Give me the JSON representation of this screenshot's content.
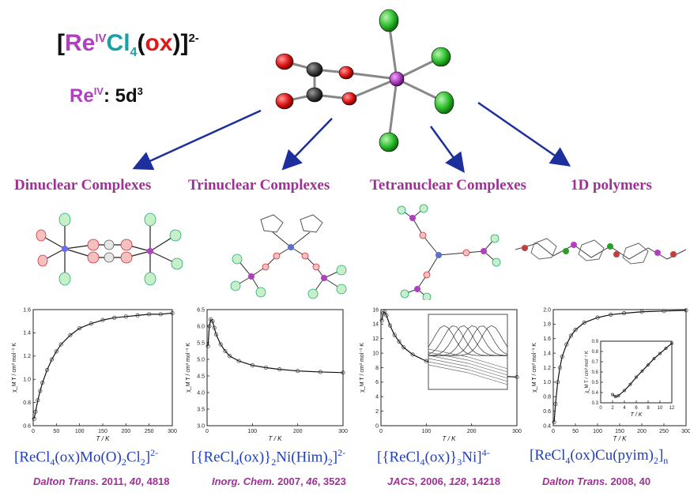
{
  "header": {
    "formula_bracket_open": "[",
    "formula_re": "Re",
    "formula_re_ox": "IV",
    "formula_cl": "Cl",
    "formula_cl_sub": "4",
    "formula_paren_open": "(",
    "formula_ox": "ox",
    "formula_paren_close": ")]",
    "formula_charge": "2-",
    "config_re": "Re",
    "config_re_ox": "IV",
    "config_colon": ": ",
    "config_value": "5d",
    "config_exp": "3"
  },
  "categories": [
    {
      "label": "Dinuclear Complexes"
    },
    {
      "label": "Trinuclear Complexes"
    },
    {
      "label": "Tetranuclear Complexes"
    },
    {
      "label": "1D polymers"
    }
  ],
  "compounds": [
    {
      "prefix": "[ReCl",
      "s1": "4",
      "mid": "(ox)Mo(O)",
      "s2": "2",
      "mid2": "Cl",
      "s3": "2",
      "end": "]",
      "charge": "2-"
    },
    {
      "prefix": "[{ReCl",
      "s1": "4",
      "mid": "(ox)}",
      "s2": "2",
      "mid2": "Ni(Him)",
      "s3": "2",
      "end": "]",
      "charge": "2-"
    },
    {
      "prefix": "[{ReCl",
      "s1": "4",
      "mid": "(ox)}",
      "s2": "3",
      "mid2": "Ni]",
      "s3": "",
      "end": "",
      "charge": "4-"
    },
    {
      "prefix": "[ReCl",
      "s1": "4",
      "mid": "(ox)Cu(pyim)",
      "s2": "2",
      "mid2": "]",
      "s3": "n",
      "end": "",
      "charge": ""
    }
  ],
  "references": [
    {
      "journal": "Dalton Trans.",
      "year": " 2011, ",
      "volume": "40",
      "pages": ", 4818"
    },
    {
      "journal": "Inorg. Chem.",
      "year": " 2007, ",
      "volume": "46",
      "pages": ", 3523"
    },
    {
      "journal": "JACS",
      "year": ", 2006, ",
      "volume": "128",
      "pages": ", 14218"
    },
    {
      "journal": "Dalton Trans.",
      "year": " 2008, ",
      "volume": "",
      "pages": "40"
    }
  ],
  "colors": {
    "rhenium": "#b040c0",
    "chlorine": "#30c030",
    "oxygen": "#e01818",
    "carbon": "#404040",
    "arrow": "#1c2f9c",
    "category": "#a03098",
    "compound": "#2040c0"
  },
  "chart_data": [
    {
      "type": "scatter",
      "ylabel": "χ_M T / cm³ mol⁻¹ K",
      "xlabel": "T / K",
      "xlim": [
        0,
        300
      ],
      "ylim": [
        0.6,
        1.6
      ],
      "xticks": [
        "0",
        "50",
        "100",
        "150",
        "200",
        "250",
        "300"
      ],
      "yticks": [
        "0.6",
        "0.8",
        "1.0",
        "1.2",
        "1.4",
        "1.6"
      ],
      "x": [
        2,
        5,
        10,
        15,
        20,
        30,
        40,
        50,
        60,
        80,
        100,
        125,
        150,
        175,
        200,
        225,
        250,
        275,
        300
      ],
      "y": [
        0.66,
        0.72,
        0.82,
        0.9,
        0.97,
        1.08,
        1.17,
        1.24,
        1.3,
        1.38,
        1.44,
        1.48,
        1.51,
        1.53,
        1.54,
        1.55,
        1.56,
        1.56,
        1.57
      ]
    },
    {
      "type": "scatter",
      "ylabel": "χ_M T / cm³ mol⁻¹ K",
      "xlabel": "T / K",
      "xlim": [
        0,
        300
      ],
      "ylim": [
        3.0,
        6.5
      ],
      "xticks": [
        "0",
        "100",
        "200",
        "300"
      ],
      "yticks": [
        "3.0",
        "3.5",
        "4.0",
        "4.5",
        "5.0",
        "5.5",
        "6.0",
        "6.5"
      ],
      "x": [
        2,
        5,
        8,
        12,
        16,
        20,
        30,
        40,
        50,
        70,
        100,
        130,
        160,
        200,
        250,
        300
      ],
      "y": [
        5.4,
        6.0,
        6.2,
        6.15,
        5.95,
        5.75,
        5.45,
        5.25,
        5.1,
        4.95,
        4.82,
        4.75,
        4.7,
        4.65,
        4.62,
        4.6
      ]
    },
    {
      "type": "scatter",
      "ylabel": "χ_M T / cm³ mol⁻¹ K",
      "xlabel": "T / K",
      "xlim": [
        0,
        300
      ],
      "ylim": [
        0,
        16
      ],
      "xticks": [
        "0",
        "100",
        "200",
        "300"
      ],
      "yticks": [
        "0",
        "2",
        "4",
        "6",
        "8",
        "10",
        "12",
        "14",
        "16"
      ],
      "x": [
        2,
        5,
        8,
        12,
        20,
        30,
        40,
        50,
        70,
        100,
        130,
        160,
        200,
        250,
        300
      ],
      "y": [
        14.5,
        15.5,
        15.7,
        15.2,
        13.8,
        12.5,
        11.6,
        10.8,
        9.8,
        8.9,
        8.3,
        7.8,
        7.3,
        6.9,
        6.7
      ]
    },
    {
      "type": "scatter",
      "ylabel": "χ_M T / cm³ mol⁻¹ K",
      "xlabel": "T / K",
      "xlim": [
        0,
        300
      ],
      "ylim": [
        0.4,
        2.0
      ],
      "xticks": [
        "0",
        "50",
        "100",
        "150",
        "200",
        "250",
        "300"
      ],
      "yticks": [
        "0.4",
        "0.6",
        "0.8",
        "1.0",
        "1.2",
        "1.4",
        "1.6",
        "1.8",
        "2.0"
      ],
      "x": [
        2,
        5,
        10,
        15,
        20,
        30,
        40,
        50,
        70,
        100,
        130,
        160,
        200,
        250,
        300
      ],
      "y": [
        0.45,
        0.7,
        1.0,
        1.2,
        1.35,
        1.52,
        1.64,
        1.72,
        1.82,
        1.89,
        1.93,
        1.95,
        1.97,
        1.98,
        1.99
      ],
      "inset": {
        "ylabel": "χ_M T / cm³ mol⁻¹ K",
        "xlabel": "T / K",
        "xlim": [
          0,
          12
        ],
        "ylim": [
          0.3,
          0.9
        ],
        "xticks": [
          "0",
          "2",
          "4",
          "6",
          "8",
          "10",
          "12"
        ],
        "yticks": [
          "0.3",
          "0.4",
          "0.5",
          "0.6",
          "0.7",
          "0.8",
          "0.9"
        ],
        "x": [
          2,
          2.5,
          3,
          4,
          5,
          6,
          7,
          8,
          9,
          10,
          11,
          12
        ],
        "y": [
          0.38,
          0.36,
          0.37,
          0.42,
          0.48,
          0.55,
          0.61,
          0.67,
          0.73,
          0.78,
          0.83,
          0.88
        ]
      }
    }
  ]
}
